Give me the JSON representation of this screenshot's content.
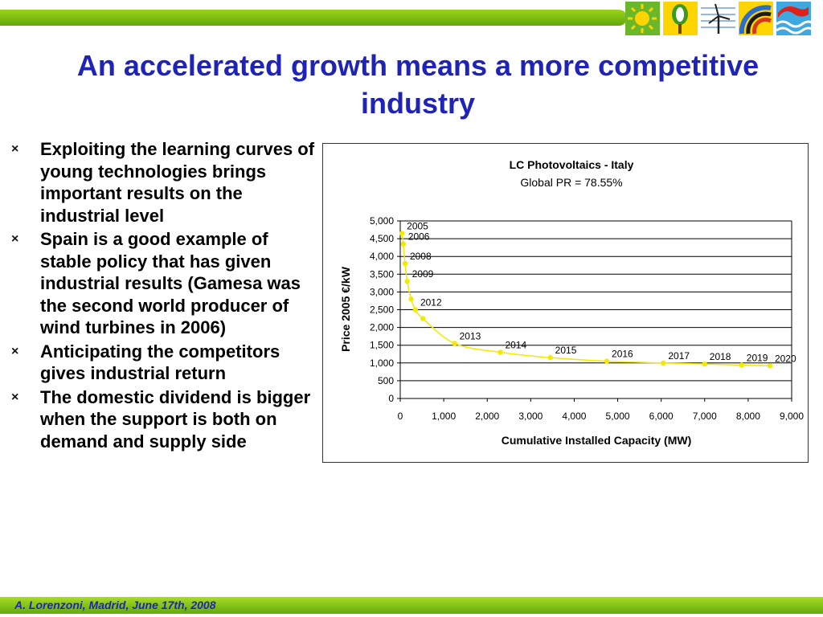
{
  "slide": {
    "title": "An accelerated growth means a more competitive industry",
    "footer": "A. Lorenzoni, Madrid, June 17th, 2008",
    "bullet_marker": "×",
    "bullets": [
      "Exploiting the learning curves of young technologies brings important results on the industrial level",
      "Spain is a good example of stable policy that has given industrial results (Gamesa was the second world producer of wind turbines in 2006)",
      "Anticipating the competitors gives industrial return",
      "The domestic dividend  is bigger when the support is both on demand and supply side"
    ],
    "logos": [
      "sun-icon",
      "biomass-tree-icon",
      "wind-turbine-icon",
      "hydro-arc-icon",
      "wave-icon"
    ]
  },
  "colors": {
    "title": "#1f24b5",
    "stripe": "#7cc00f",
    "series": "#f2ea00"
  },
  "chart_data": {
    "type": "scatter",
    "title": "LC Photovoltaics - Italy",
    "subtitle": "Global PR = 78.55%",
    "xlabel": "Cumulative Installed Capacity (MW)",
    "ylabel": "Price 2005 €/kW",
    "xlim": [
      0,
      9000
    ],
    "ylim": [
      0,
      5000
    ],
    "x_ticks": [
      "0",
      "1,000",
      "2,000",
      "3,000",
      "4,000",
      "5,000",
      "6,000",
      "7,000",
      "8,000",
      "9,000"
    ],
    "y_ticks": [
      "0",
      "500",
      "1,000",
      "1,500",
      "2,000",
      "2,500",
      "3,000",
      "3,500",
      "4,000",
      "4,500",
      "5,000"
    ],
    "grid": "horizontal",
    "points": [
      {
        "x": 40,
        "y": 4650,
        "label": "2005"
      },
      {
        "x": 70,
        "y": 4350,
        "label": "2006"
      },
      {
        "x": 110,
        "y": 3800,
        "label": "2008"
      },
      {
        "x": 160,
        "y": 3300,
        "label": "2009"
      },
      {
        "x": 250,
        "y": 2800,
        "label": null
      },
      {
        "x": 350,
        "y": 2500,
        "label": "2012"
      },
      {
        "x": 520,
        "y": 2250,
        "label": null
      },
      {
        "x": 1250,
        "y": 1550,
        "label": "2013"
      },
      {
        "x": 2300,
        "y": 1300,
        "label": "2014"
      },
      {
        "x": 3450,
        "y": 1150,
        "label": "2015"
      },
      {
        "x": 4750,
        "y": 1050,
        "label": "2016"
      },
      {
        "x": 6050,
        "y": 1000,
        "label": "2017"
      },
      {
        "x": 7000,
        "y": 970,
        "label": "2018"
      },
      {
        "x": 7850,
        "y": 940,
        "label": "2019"
      },
      {
        "x": 8500,
        "y": 920,
        "label": "2020"
      }
    ]
  }
}
